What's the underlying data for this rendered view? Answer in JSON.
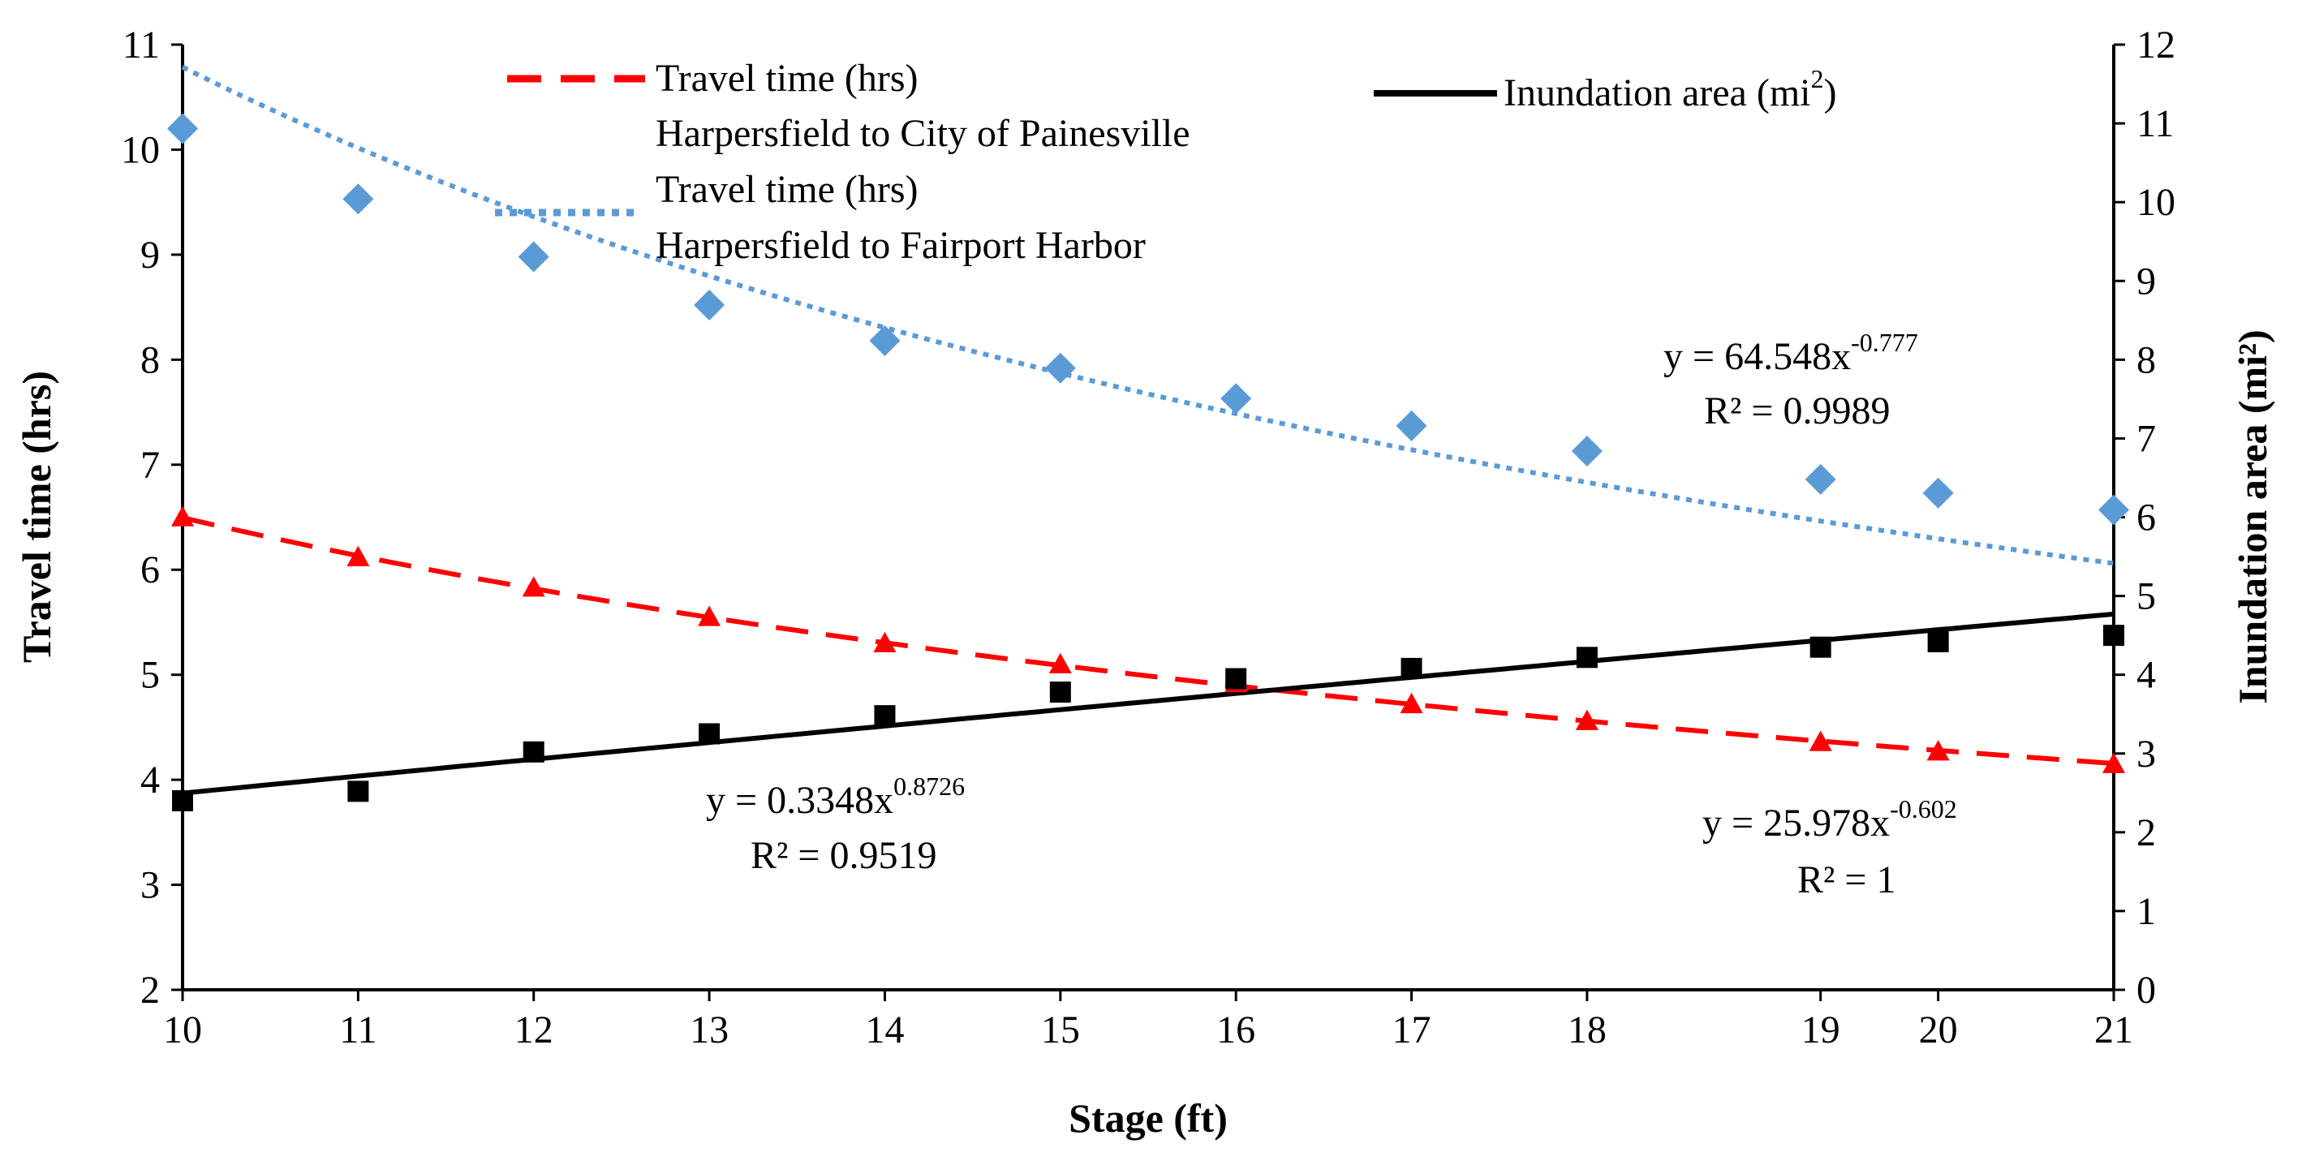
{
  "chart_data": {
    "type": "line",
    "title": "",
    "xlabel": "Stage (ft)",
    "ylabel_left": "Travel time (hrs)",
    "ylabel_right": "Inundation area (mi²)",
    "xlim": [
      10,
      21
    ],
    "ylim_left": [
      2,
      11
    ],
    "ylim_right": [
      0,
      12
    ],
    "x_ticks": [
      "10",
      "11",
      "12",
      "13",
      "14",
      "15",
      "16",
      "17",
      "18",
      "19",
      "20",
      "21"
    ],
    "x_tick_positions": [
      10,
      11,
      12,
      13,
      14,
      15,
      16,
      17,
      18,
      19.33,
      20,
      21
    ],
    "y_left_ticks": [
      "2",
      "3",
      "4",
      "5",
      "6",
      "7",
      "8",
      "9",
      "10",
      "11"
    ],
    "y_right_ticks": [
      "0",
      "1",
      "2",
      "3",
      "4",
      "5",
      "6",
      "7",
      "8",
      "9",
      "10",
      "11",
      "12"
    ],
    "grid": false,
    "legend_position": "top",
    "series": [
      {
        "name": "Travel time (hrs) Harpersfield to City of Painesville",
        "legend_line1": "Travel time (hrs)",
        "legend_line2": "Harpersfield to City of Painesville",
        "axis": "left",
        "marker": "triangle",
        "line_style": "dashed",
        "color": "#ff0000",
        "x": [
          10,
          11,
          12,
          13,
          14,
          15,
          16,
          17,
          18,
          19.33,
          20,
          21
        ],
        "y": [
          6.5,
          6.12,
          5.83,
          5.55,
          5.3,
          5.1,
          4.92,
          4.72,
          4.56,
          4.36,
          4.27,
          4.15
        ],
        "trendline": {
          "a": 25.978,
          "b": -0.602
        },
        "equation_prefix": "y = 25.978x",
        "equation_exp": "-0.602",
        "r2": "R² = 1"
      },
      {
        "name": "Travel time (hrs) Harpersfield to Fairport Harbor",
        "legend_line1": "Travel time (hrs)",
        "legend_line2": "Harpersfield to Fairport Harbor",
        "axis": "left",
        "marker": "diamond",
        "line_style": "dotted",
        "color": "#5b9bd5",
        "x": [
          10,
          11,
          12,
          13,
          14,
          15,
          16,
          17,
          18,
          19.33,
          20,
          21
        ],
        "y": [
          10.2,
          9.53,
          8.98,
          8.52,
          8.18,
          7.92,
          7.63,
          7.37,
          7.13,
          6.86,
          6.73,
          6.57
        ],
        "trendline": {
          "a": 64.548,
          "b": -0.777
        },
        "equation_prefix": "y = 64.548x",
        "equation_exp": "-0.777",
        "r2": "R² = 0.9989"
      },
      {
        "name": "Inundation area (mi²)",
        "legend_main": "Inundation area (mi",
        "legend_sup": "2",
        "legend_close": ")",
        "axis": "right",
        "marker": "square",
        "line_style": "solid",
        "color": "#000000",
        "x": [
          10,
          11,
          12,
          13,
          14,
          15,
          16,
          17,
          18,
          19.33,
          20,
          21
        ],
        "y": [
          2.4,
          2.52,
          3.02,
          3.25,
          3.48,
          3.78,
          3.95,
          4.08,
          4.22,
          4.35,
          4.42,
          4.5
        ],
        "trendline": {
          "a": 0.3348,
          "b": 0.8726
        },
        "equation_prefix": "y = 0.3348x",
        "equation_exp": "0.8726",
        "r2": "R² = 0.9519"
      }
    ]
  }
}
